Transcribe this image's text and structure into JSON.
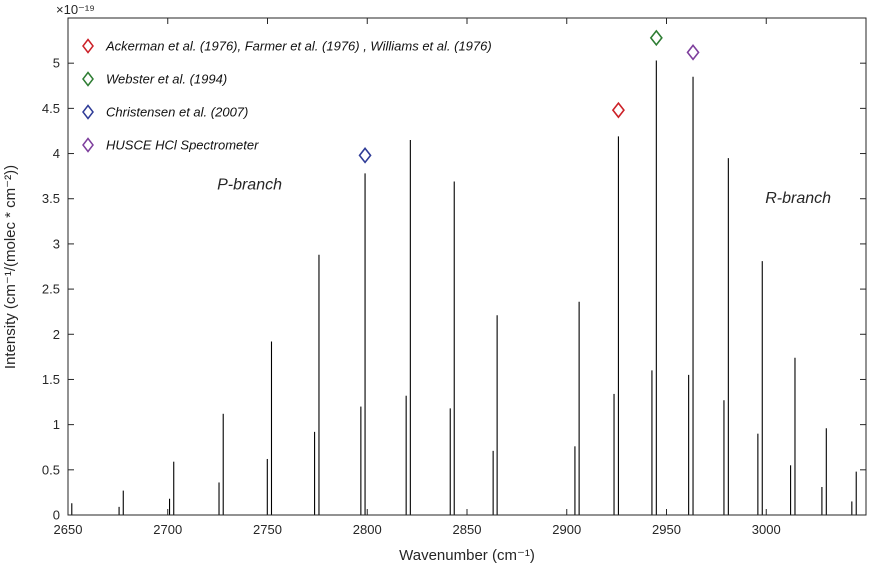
{
  "chart_data": {
    "type": "bar",
    "subtype": "stick-spectrum",
    "title": "",
    "xlabel": "Wavenumber (cm⁻¹)",
    "ylabel": "Intensity (cm⁻¹/(molec * cm⁻²))",
    "y_multiplier_label": "×10⁻¹⁹",
    "xlim": [
      2650,
      3050
    ],
    "ylim": [
      0,
      5.5
    ],
    "xticks": [
      2650,
      2700,
      2750,
      2800,
      2850,
      2900,
      2950,
      3000
    ],
    "yticks": [
      0,
      0.5,
      1,
      1.5,
      2,
      2.5,
      3,
      3.5,
      4,
      4.5,
      5
    ],
    "ytick_labels": [
      "0",
      "0.5",
      "1",
      "1.5",
      "2",
      "2.5",
      "3",
      "3.5",
      "4",
      "4.5",
      "5"
    ],
    "grid": false,
    "line_color": "#000000",
    "frame_color": "#262626",
    "lines": [
      {
        "x": 2651.9,
        "y": 0.13
      },
      {
        "x": 2675.6,
        "y": 0.09
      },
      {
        "x": 2677.7,
        "y": 0.27
      },
      {
        "x": 2700.9,
        "y": 0.18
      },
      {
        "x": 2703.0,
        "y": 0.59
      },
      {
        "x": 2725.7,
        "y": 0.36
      },
      {
        "x": 2727.8,
        "y": 1.12
      },
      {
        "x": 2749.9,
        "y": 0.62
      },
      {
        "x": 2752.0,
        "y": 1.92
      },
      {
        "x": 2773.6,
        "y": 0.92
      },
      {
        "x": 2775.8,
        "y": 2.88
      },
      {
        "x": 2796.8,
        "y": 1.2
      },
      {
        "x": 2798.9,
        "y": 3.78
      },
      {
        "x": 2819.5,
        "y": 1.32
      },
      {
        "x": 2821.6,
        "y": 4.15
      },
      {
        "x": 2841.6,
        "y": 1.18
      },
      {
        "x": 2843.6,
        "y": 3.69
      },
      {
        "x": 2863.1,
        "y": 0.71
      },
      {
        "x": 2865.1,
        "y": 2.21
      },
      {
        "x": 2904.1,
        "y": 0.76
      },
      {
        "x": 2906.2,
        "y": 2.36
      },
      {
        "x": 2923.7,
        "y": 1.34
      },
      {
        "x": 2925.9,
        "y": 4.19
      },
      {
        "x": 2942.7,
        "y": 1.6
      },
      {
        "x": 2944.9,
        "y": 5.03
      },
      {
        "x": 2961.1,
        "y": 1.55
      },
      {
        "x": 2963.3,
        "y": 4.85
      },
      {
        "x": 2978.8,
        "y": 1.27
      },
      {
        "x": 2981.0,
        "y": 3.95
      },
      {
        "x": 2995.8,
        "y": 0.9
      },
      {
        "x": 2998.0,
        "y": 2.81
      },
      {
        "x": 3012.2,
        "y": 0.55
      },
      {
        "x": 3014.4,
        "y": 1.74
      },
      {
        "x": 3027.9,
        "y": 0.31
      },
      {
        "x": 3030.1,
        "y": 0.96
      },
      {
        "x": 3042.9,
        "y": 0.15
      },
      {
        "x": 3045.1,
        "y": 0.48
      }
    ],
    "markers": [
      {
        "name": "christensen",
        "x": 2798.9,
        "y": 3.98,
        "color": "#2f3c97",
        "shape": "diamond"
      },
      {
        "name": "ackerman-farmer-williams",
        "x": 2925.9,
        "y": 4.48,
        "color": "#cc2128",
        "shape": "diamond"
      },
      {
        "name": "webster",
        "x": 2944.9,
        "y": 5.28,
        "color": "#2e7d33",
        "shape": "diamond"
      },
      {
        "name": "husce",
        "x": 2963.3,
        "y": 5.12,
        "color": "#7e3f9d",
        "shape": "diamond"
      }
    ],
    "annotations": [
      {
        "text": "P-branch",
        "x": 2741,
        "y": 3.6,
        "color": "#9a9a9a"
      },
      {
        "text": "R-branch",
        "x": 3016,
        "y": 3.45,
        "color": "#9a9a9a"
      }
    ],
    "legend": {
      "position": "top-left-inside",
      "items": [
        {
          "key": "ackerman-farmer-williams",
          "label": "Ackerman et al. (1976), Farmer et al. (1976) , Williams et al. (1976)",
          "color": "#cc2128",
          "marker": "diamond"
        },
        {
          "key": "webster",
          "label": "Webster et al. (1994)",
          "color": "#2e7d33",
          "marker": "diamond"
        },
        {
          "key": "christensen",
          "label": "Christensen et al. (2007)",
          "color": "#2f3c97",
          "marker": "diamond"
        },
        {
          "key": "husce",
          "label": "HUSCE HCl Spectrometer",
          "color": "#7e3f9d",
          "marker": "diamond"
        }
      ]
    }
  }
}
